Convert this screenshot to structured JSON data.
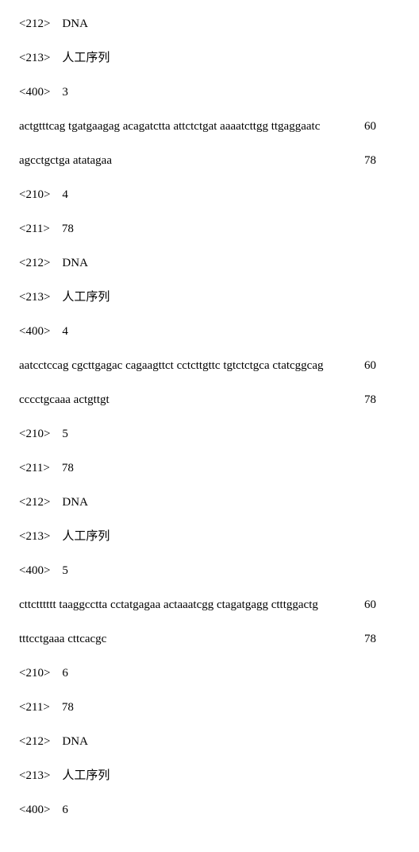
{
  "entries": [
    {
      "type": "row",
      "text": "<212>    DNA"
    },
    {
      "type": "row",
      "text": "<213>    人工序列"
    },
    {
      "type": "row",
      "text": "<400>    3"
    },
    {
      "type": "seq",
      "text": "actgtttcag tgatgaagag acagatctta attctctgat aaaatcttgg ttgaggaatc",
      "num": "60"
    },
    {
      "type": "seq",
      "text": "agcctgctga atatagaa",
      "num": "78"
    },
    {
      "type": "row",
      "text": "<210>    4"
    },
    {
      "type": "row",
      "text": "<211>    78"
    },
    {
      "type": "row",
      "text": "<212>    DNA"
    },
    {
      "type": "row",
      "text": "<213>    人工序列"
    },
    {
      "type": "row",
      "text": "<400>    4"
    },
    {
      "type": "seq",
      "text": "aatcctccag cgcttgagac cagaagttct cctcttgttc tgtctctgca ctatcggcag",
      "num": "60"
    },
    {
      "type": "seq",
      "text": "cccctgcaaa actgttgt",
      "num": "78"
    },
    {
      "type": "row",
      "text": "<210>    5"
    },
    {
      "type": "row",
      "text": "<211>    78"
    },
    {
      "type": "row",
      "text": "<212>    DNA"
    },
    {
      "type": "row",
      "text": "<213>    人工序列"
    },
    {
      "type": "row",
      "text": "<400>    5"
    },
    {
      "type": "seq",
      "text": "cttctttttt taaggcctta cctatgagaa actaaatcgg ctagatgagg ctttggactg",
      "num": "60"
    },
    {
      "type": "seq",
      "text": "tttcctgaaa cttcacgc",
      "num": "78"
    },
    {
      "type": "row",
      "text": "<210>    6"
    },
    {
      "type": "row",
      "text": "<211>    78"
    },
    {
      "type": "row",
      "text": "<212>    DNA"
    },
    {
      "type": "row",
      "text": "<213>    人工序列"
    },
    {
      "type": "row",
      "text": "<400>    6"
    }
  ]
}
